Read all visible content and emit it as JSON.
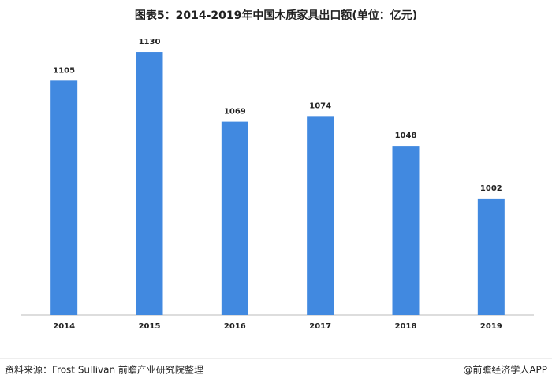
{
  "chart_data": {
    "type": "bar",
    "title": "图表5：2014-2019年中国木质家具出口额(单位：亿元)",
    "categories": [
      "2014",
      "2015",
      "2016",
      "2017",
      "2018",
      "2019"
    ],
    "values": [
      1105,
      1130,
      1069,
      1074,
      1048,
      1002
    ],
    "color": "#4189e0",
    "ylim": [
      900,
      1150
    ],
    "source": "资料来源：Frost Sullivan 前瞻产业研究院整理",
    "credit": "@前瞻经济学人APP"
  }
}
